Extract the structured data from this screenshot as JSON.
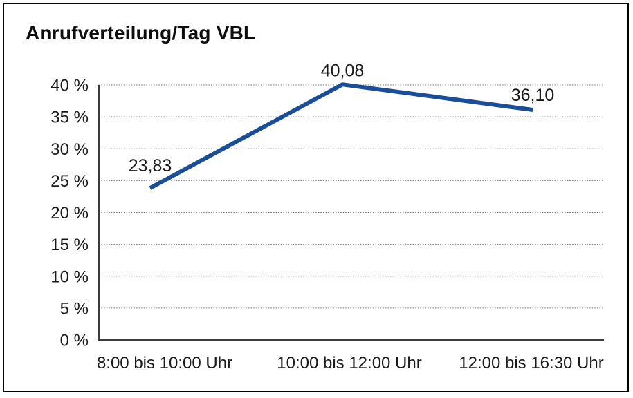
{
  "chart_data": {
    "type": "line",
    "title": "Anrufverteilung/Tag VBL",
    "categories": [
      "8:00 bis 10:00 Uhr",
      "10:00 bis 12:00 Uhr",
      "12:00 bis 16:30 Uhr"
    ],
    "values": [
      23.83,
      40.08,
      36.1
    ],
    "value_labels": [
      "23,83",
      "40,08",
      "36,10"
    ],
    "xlabel": "",
    "ylabel": "",
    "ylim": [
      0,
      40
    ],
    "ytick_step": 5,
    "ytick_labels": [
      "0 %",
      "5 %",
      "10 %",
      "15 %",
      "20 %",
      "25 %",
      "30 %",
      "35 %",
      "40 %"
    ],
    "grid": "horizontal-dotted",
    "legend": "none",
    "markers": "none",
    "colors": {
      "line": "#1B4E99",
      "axis": "#3a3a3a",
      "grid": "#6e6e6e",
      "text": "#1a1a1a",
      "frame": "#000000",
      "background": "#ffffff"
    }
  }
}
